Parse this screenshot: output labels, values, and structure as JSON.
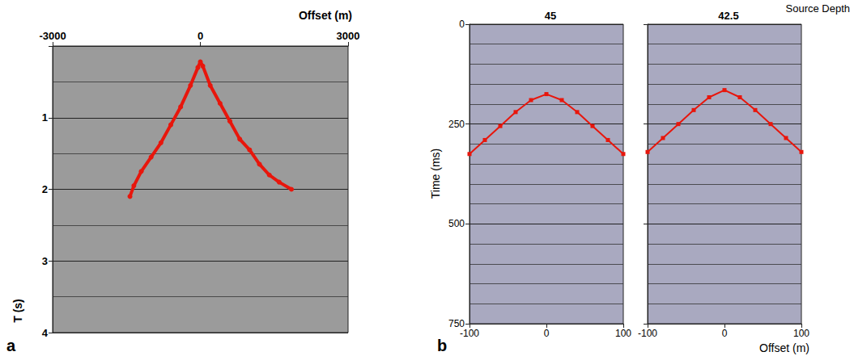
{
  "chart_data": [
    {
      "panel": "a",
      "type": "line",
      "xlabel": "Offset (m)",
      "ylabel": "T (s)",
      "xlim": [
        -3000,
        3000
      ],
      "xticks": [
        -3000,
        0,
        3000
      ],
      "ylim": [
        0,
        4
      ],
      "yticks": [
        1,
        2,
        3,
        4
      ],
      "grid": true,
      "x": [
        -1430,
        -1350,
        -1200,
        -1000,
        -800,
        -600,
        -400,
        -200,
        -50,
        0,
        50,
        200,
        400,
        600,
        800,
        1000,
        1200,
        1400,
        1600,
        1850
      ],
      "series": [
        {
          "color": "#e8160c",
          "marker": "circle",
          "line_style": "solid",
          "values": [
            2.1,
            1.95,
            1.75,
            1.55,
            1.35,
            1.1,
            0.85,
            0.55,
            0.3,
            0.22,
            0.28,
            0.55,
            0.8,
            1.05,
            1.3,
            1.45,
            1.65,
            1.8,
            1.9,
            2.0
          ]
        }
      ]
    },
    {
      "panel": "b",
      "type": "line",
      "title": "45",
      "ylabel": "Time (ms)",
      "xlim": [
        -100,
        100
      ],
      "xticks": [
        -100,
        0,
        100
      ],
      "ylim": [
        0,
        750
      ],
      "yticks": [
        0,
        250,
        500,
        750
      ],
      "grid": true,
      "x": [
        -100,
        -80,
        -60,
        -40,
        -20,
        0,
        20,
        40,
        60,
        80,
        100
      ],
      "series": [
        {
          "color": "#e8160c",
          "marker": "square",
          "line_style": "solid",
          "values": [
            325,
            290,
            255,
            220,
            190,
            175,
            190,
            220,
            255,
            290,
            325
          ]
        }
      ]
    },
    {
      "type": "line",
      "title": "42.5",
      "annotation": "Source Depth",
      "xlabel": "Offset (m)",
      "xlim": [
        -100,
        100
      ],
      "xticks": [
        -100,
        0,
        100
      ],
      "ylim": [
        0,
        750
      ],
      "yticks": [
        0,
        250,
        500,
        750
      ],
      "grid": true,
      "tick_labels": "x",
      "x": [
        -100,
        -80,
        -60,
        -40,
        -20,
        0,
        20,
        40,
        60,
        80,
        100
      ],
      "series": [
        {
          "color": "#e8160c",
          "marker": "square",
          "line_style": "solid",
          "values": [
            320,
            285,
            250,
            215,
            183,
            165,
            183,
            215,
            250,
            285,
            320
          ]
        }
      ]
    }
  ]
}
